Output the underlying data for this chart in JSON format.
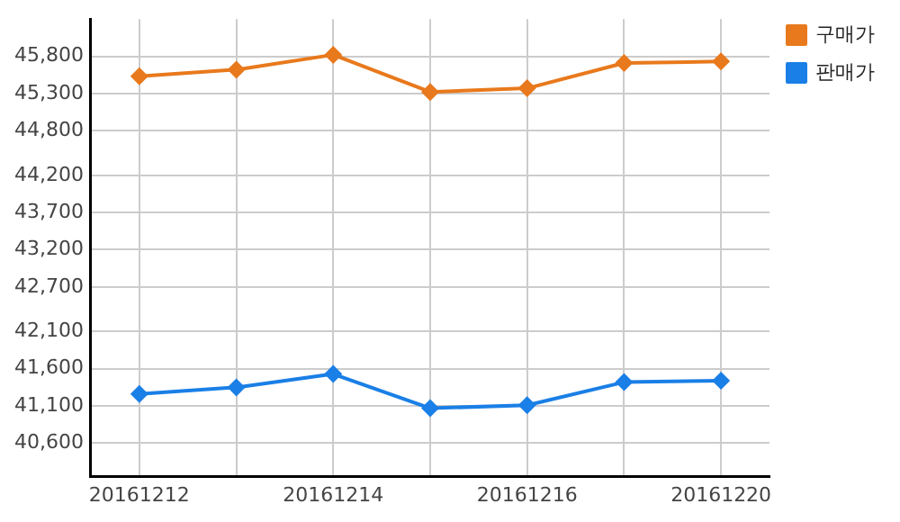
{
  "chart_data": {
    "type": "line",
    "categories": [
      "20161212",
      null,
      "20161214",
      null,
      "20161216",
      null,
      "20161220"
    ],
    "series": [
      {
        "name": "구매가",
        "color": "#e8791c",
        "values": [
          45530,
          45620,
          45820,
          45320,
          45370,
          45710,
          45730
        ]
      },
      {
        "name": "판매가",
        "color": "#1a7fe6",
        "values": [
          41260,
          41350,
          41530,
          41070,
          41110,
          41420,
          41440
        ]
      }
    ],
    "ylim": [
      40150,
      46300
    ],
    "yticks": [
      {
        "value": 40600,
        "label": "40,600"
      },
      {
        "value": 41100,
        "label": "41,100"
      },
      {
        "value": 41600,
        "label": "41,600"
      },
      {
        "value": 42100,
        "label": "42,100"
      },
      {
        "value": 42700,
        "label": "42,700"
      },
      {
        "value": 43200,
        "label": "43,200"
      },
      {
        "value": 43700,
        "label": "43,700"
      },
      {
        "value": 44200,
        "label": "44,200"
      },
      {
        "value": 44800,
        "label": "44,800"
      },
      {
        "value": 45300,
        "label": "45,300"
      },
      {
        "value": 45800,
        "label": "45,800"
      }
    ],
    "grid": true,
    "legend": "top right",
    "marker": "diamond",
    "line_style": "solid"
  }
}
